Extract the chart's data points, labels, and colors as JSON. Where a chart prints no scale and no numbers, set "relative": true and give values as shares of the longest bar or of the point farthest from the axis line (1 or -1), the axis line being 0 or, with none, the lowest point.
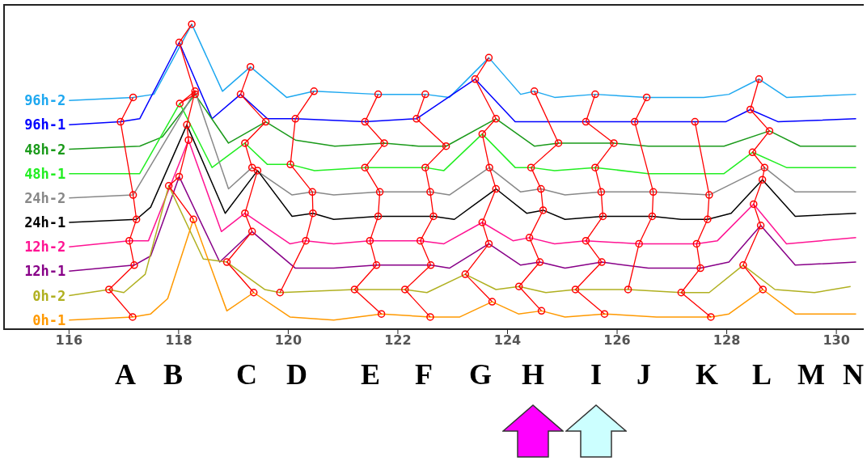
{
  "chart_data": {
    "type": "line",
    "relative": true,
    "xlim": [
      114.8,
      130.5
    ],
    "xticks": [
      116,
      118,
      120,
      122,
      124,
      126,
      128,
      130
    ],
    "line_style": "solid",
    "annotations": [
      "A",
      "B",
      "C",
      "D",
      "E",
      "F",
      "G",
      "H",
      "I",
      "J",
      "K",
      "L",
      "M",
      "N"
    ],
    "series": [
      {
        "name": "96h-2",
        "color": "#1ea8f0",
        "marker": "none",
        "x": [
          116,
          117.17,
          117.55,
          118.24,
          118.8,
          119.31,
          119.97,
          120.47,
          121.64,
          122.5,
          122.94,
          123.66,
          124.24,
          124.49,
          124.86,
          125.6,
          126.54,
          127.58,
          128.04,
          128.59,
          129.09,
          130.36
        ],
        "values": [
          0.75,
          0.76,
          0.77,
          1.0,
          0.78,
          0.86,
          0.76,
          0.78,
          0.77,
          0.77,
          0.76,
          0.89,
          0.77,
          0.78,
          0.76,
          0.77,
          0.76,
          0.76,
          0.77,
          0.82,
          0.76,
          0.77
        ]
      },
      {
        "name": "96h-1",
        "color": "#0000ff",
        "marker": "none",
        "x": [
          116,
          116.94,
          117.29,
          118.01,
          118.61,
          119.13,
          119.62,
          120.13,
          121.4,
          122.34,
          123.41,
          124.14,
          125.43,
          126.32,
          126.88,
          127.42,
          127.98,
          128.43,
          128.94,
          130.36
        ],
        "values": [
          0.67,
          0.68,
          0.69,
          0.94,
          0.69,
          0.77,
          0.69,
          0.69,
          0.68,
          0.69,
          0.82,
          0.68,
          0.68,
          0.68,
          0.68,
          0.68,
          0.68,
          0.72,
          0.68,
          0.69
        ]
      },
      {
        "name": "48h-2",
        "color": "#1a9a1a",
        "marker": "none",
        "x": [
          116,
          117.29,
          117.7,
          118.3,
          118.91,
          119.59,
          120.13,
          120.85,
          121.75,
          122.38,
          122.88,
          123.79,
          124.49,
          124.93,
          125.94,
          126.57,
          127.95,
          128.78,
          129.34,
          130.36
        ],
        "values": [
          0.59,
          0.6,
          0.63,
          0.77,
          0.61,
          0.68,
          0.62,
          0.6,
          0.61,
          0.6,
          0.6,
          0.69,
          0.6,
          0.61,
          0.61,
          0.6,
          0.6,
          0.65,
          0.6,
          0.6
        ]
      },
      {
        "name": "48h-1",
        "color": "#22ee22",
        "marker": "none",
        "x": [
          116,
          117.29,
          118.02,
          118.61,
          119.21,
          119.62,
          120.04,
          120.48,
          121.4,
          122.5,
          122.84,
          123.54,
          124.14,
          124.43,
          124.86,
          125.6,
          126.57,
          127.95,
          128.47,
          129.09,
          130.36
        ],
        "values": [
          0.51,
          0.51,
          0.74,
          0.53,
          0.61,
          0.54,
          0.54,
          0.52,
          0.53,
          0.53,
          0.52,
          0.64,
          0.53,
          0.53,
          0.52,
          0.53,
          0.51,
          0.51,
          0.58,
          0.53,
          0.53
        ]
      },
      {
        "name": "24h-2",
        "color": "#888888",
        "marker": "none",
        "x": [
          116,
          117.17,
          118.3,
          118.91,
          119.34,
          120.07,
          120.44,
          120.83,
          121.67,
          122.59,
          122.94,
          123.67,
          124.24,
          124.61,
          125.05,
          125.71,
          126.66,
          127.68,
          128.69,
          129.25,
          129.65,
          130.36
        ],
        "values": [
          0.43,
          0.44,
          0.78,
          0.46,
          0.53,
          0.44,
          0.45,
          0.44,
          0.45,
          0.45,
          0.44,
          0.53,
          0.45,
          0.46,
          0.44,
          0.45,
          0.45,
          0.44,
          0.53,
          0.45,
          0.45,
          0.45
        ]
      },
      {
        "name": "24h-1",
        "color": "#000000",
        "marker": "none",
        "x": [
          116,
          117.23,
          117.49,
          118.15,
          118.85,
          119.44,
          120.07,
          120.45,
          120.83,
          121.64,
          122.65,
          123.03,
          123.79,
          124.35,
          124.65,
          125.05,
          125.74,
          126.64,
          127.17,
          127.65,
          128.08,
          128.65,
          129.25,
          130.36
        ],
        "values": [
          0.35,
          0.36,
          0.4,
          0.67,
          0.38,
          0.52,
          0.37,
          0.38,
          0.36,
          0.37,
          0.37,
          0.36,
          0.46,
          0.38,
          0.39,
          0.36,
          0.37,
          0.37,
          0.36,
          0.36,
          0.38,
          0.49,
          0.37,
          0.38
        ]
      },
      {
        "name": "12h-2",
        "color": "#ff1493",
        "marker": "none",
        "x": [
          116,
          117.1,
          117.45,
          118.18,
          118.78,
          119.21,
          120.03,
          120.32,
          120.83,
          121.49,
          122.41,
          122.84,
          123.54,
          124.1,
          124.4,
          124.86,
          125.43,
          126.4,
          127.45,
          127.83,
          128.49,
          129.09,
          130.36
        ],
        "values": [
          0.27,
          0.29,
          0.29,
          0.62,
          0.32,
          0.38,
          0.28,
          0.29,
          0.28,
          0.29,
          0.29,
          0.28,
          0.35,
          0.29,
          0.3,
          0.28,
          0.29,
          0.28,
          0.28,
          0.29,
          0.41,
          0.28,
          0.3
        ]
      },
      {
        "name": "12h-1",
        "color": "#880088",
        "marker": "none",
        "x": [
          116,
          117.19,
          117.49,
          118.01,
          118.75,
          119.34,
          120.13,
          120.83,
          121.61,
          122.6,
          122.94,
          123.66,
          124.24,
          124.59,
          125.05,
          125.72,
          126.57,
          127.52,
          128.04,
          128.62,
          129.25,
          130.36
        ],
        "values": [
          0.19,
          0.21,
          0.24,
          0.5,
          0.22,
          0.32,
          0.2,
          0.2,
          0.21,
          0.21,
          0.2,
          0.28,
          0.21,
          0.22,
          0.2,
          0.22,
          0.2,
          0.2,
          0.22,
          0.34,
          0.21,
          0.22
        ]
      },
      {
        "name": "0h-2",
        "color": "#b0b020",
        "marker": "none",
        "x": [
          116,
          116.73,
          117.0,
          117.39,
          117.82,
          118.45,
          118.88,
          119.57,
          119.85,
          121.21,
          122.13,
          122.53,
          123.23,
          123.79,
          124.21,
          124.7,
          125.24,
          126.2,
          127.17,
          127.68,
          128.3,
          128.88,
          129.6,
          130.26
        ],
        "values": [
          0.11,
          0.13,
          0.12,
          0.18,
          0.47,
          0.23,
          0.22,
          0.13,
          0.12,
          0.13,
          0.13,
          0.12,
          0.18,
          0.13,
          0.14,
          0.12,
          0.13,
          0.13,
          0.12,
          0.12,
          0.21,
          0.13,
          0.12,
          0.14
        ]
      },
      {
        "name": "0h-1",
        "color": "#ff9900",
        "marker": "none",
        "x": [
          116,
          117.16,
          117.49,
          117.8,
          118.27,
          118.88,
          119.37,
          120.03,
          120.83,
          121.7,
          122.59,
          123.13,
          123.72,
          124.2,
          124.62,
          125.05,
          125.77,
          126.72,
          127.71,
          128.04,
          128.66,
          129.25,
          130.36
        ],
        "values": [
          0.03,
          0.04,
          0.05,
          0.1,
          0.36,
          0.06,
          0.12,
          0.04,
          0.03,
          0.05,
          0.04,
          0.04,
          0.09,
          0.05,
          0.06,
          0.04,
          0.05,
          0.04,
          0.04,
          0.05,
          0.13,
          0.05,
          0.05
        ]
      },
      {
        "color": "#ff0000",
        "marker": "circle",
        "x": [
          117.16,
          116.73,
          117.19,
          117.1,
          117.23,
          117.17,
          116.94,
          117.17
        ],
        "values": [
          0.04,
          0.13,
          0.21,
          0.29,
          0.36,
          0.44,
          0.68,
          0.76
        ]
      },
      {
        "color": "#ff0000",
        "marker": "circle",
        "x": [
          118.27,
          117.82,
          118.01,
          118.18,
          118.15,
          118.3,
          118.02,
          118.3,
          118.01,
          118.24
        ],
        "values": [
          0.36,
          0.47,
          0.5,
          0.62,
          0.67,
          0.78,
          0.74,
          0.77,
          0.94,
          1.0
        ]
      },
      {
        "color": "#ff0000",
        "marker": "circle",
        "x": [
          119.37,
          118.88,
          119.34,
          119.21,
          119.44,
          119.34,
          119.21,
          119.59,
          119.13,
          119.31
        ],
        "values": [
          0.12,
          0.22,
          0.32,
          0.38,
          0.52,
          0.53,
          0.61,
          0.68,
          0.77,
          0.86
        ]
      },
      {
        "color": "#ff0000",
        "marker": "circle",
        "x": [
          119.85,
          120.32,
          120.45,
          120.44,
          120.04,
          120.13,
          120.47
        ],
        "values": [
          0.12,
          0.29,
          0.38,
          0.45,
          0.54,
          0.69,
          0.78
        ]
      },
      {
        "color": "#ff0000",
        "marker": "circle",
        "x": [
          121.7,
          121.21,
          121.61,
          121.49,
          121.64,
          121.67,
          121.4,
          121.75,
          121.4,
          121.64
        ],
        "values": [
          0.05,
          0.13,
          0.21,
          0.29,
          0.37,
          0.45,
          0.53,
          0.61,
          0.68,
          0.77
        ]
      },
      {
        "color": "#ff0000",
        "marker": "circle",
        "x": [
          122.59,
          122.13,
          122.6,
          122.41,
          122.65,
          122.59,
          122.5,
          122.88,
          122.34,
          122.5
        ],
        "values": [
          0.04,
          0.13,
          0.21,
          0.29,
          0.37,
          0.45,
          0.53,
          0.6,
          0.69,
          0.77
        ]
      },
      {
        "color": "#ff0000",
        "marker": "circle",
        "x": [
          123.72,
          123.23,
          123.66,
          123.54,
          123.79,
          123.67,
          123.54,
          123.79,
          123.41,
          123.66
        ],
        "values": [
          0.09,
          0.18,
          0.28,
          0.35,
          0.46,
          0.53,
          0.64,
          0.69,
          0.82,
          0.89
        ]
      },
      {
        "color": "#ff0000",
        "marker": "circle",
        "x": [
          124.62,
          124.21,
          124.59,
          124.4,
          124.65,
          124.61,
          124.43,
          124.93,
          124.49
        ],
        "values": [
          0.06,
          0.14,
          0.22,
          0.3,
          0.39,
          0.46,
          0.53,
          0.61,
          0.78
        ]
      },
      {
        "color": "#ff0000",
        "marker": "circle",
        "x": [
          125.77,
          125.24,
          125.72,
          125.43,
          125.74,
          125.71,
          125.6,
          125.94,
          125.43,
          125.6
        ],
        "values": [
          0.05,
          0.13,
          0.22,
          0.29,
          0.37,
          0.45,
          0.53,
          0.61,
          0.68,
          0.77
        ]
      },
      {
        "color": "#ff0000",
        "marker": "circle",
        "x": [
          126.2,
          126.4,
          126.64,
          126.66,
          126.32,
          126.54
        ],
        "values": [
          0.13,
          0.28,
          0.37,
          0.45,
          0.68,
          0.76
        ]
      },
      {
        "color": "#ff0000",
        "marker": "circle",
        "x": [
          127.71,
          127.17,
          127.52,
          127.45,
          127.65,
          127.68,
          127.42
        ],
        "values": [
          0.04,
          0.12,
          0.2,
          0.28,
          0.36,
          0.44,
          0.68
        ]
      },
      {
        "color": "#ff0000",
        "marker": "circle",
        "x": [
          128.66,
          128.3,
          128.62,
          128.49,
          128.65,
          128.69,
          128.47,
          128.78,
          128.43,
          128.59
        ],
        "values": [
          0.13,
          0.21,
          0.34,
          0.41,
          0.49,
          0.53,
          0.58,
          0.65,
          0.72,
          0.82
        ]
      }
    ]
  }
}
